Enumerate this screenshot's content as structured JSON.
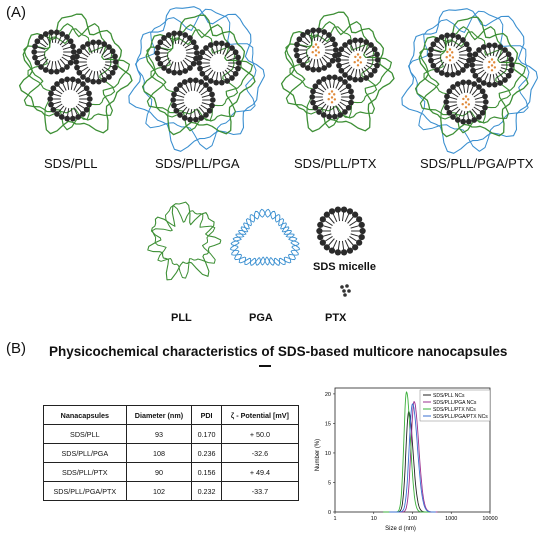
{
  "panel_a": {
    "label": "(A)",
    "capsules": [
      {
        "name": "SDS/PLL"
      },
      {
        "name": "SDS/PLL/PGA"
      },
      {
        "name": "SDS/PLL/PTX"
      },
      {
        "name": "SDS/PLL/PGA/PTX"
      }
    ],
    "components": {
      "pll": "PLL",
      "pga": "PGA",
      "ptx": "PTX",
      "micelle": "SDS micelle"
    },
    "colors": {
      "pll": "#3d8f35",
      "pga": "#3a8fd0",
      "micelle": "#2b2b2b",
      "ptx": "#e08a3a"
    }
  },
  "panel_b": {
    "label": "(B)",
    "title": "Physicochemical characteristics of SDS-based multicore nanocapsules",
    "table": {
      "headers": [
        "Nanacapsules",
        "Diameter (nm)",
        "PDI",
        "ζ - Potential [mV]"
      ],
      "rows": [
        [
          "SDS/PLL",
          "93",
          "0.170",
          "+ 50.0"
        ],
        [
          "SDS/PLL/PGA",
          "108",
          "0.236",
          "-32.6"
        ],
        [
          "SDS/PLL/PTX",
          "90",
          "0.156",
          "+ 49.4"
        ],
        [
          "SDS/PLL/PGA/PTX",
          "102",
          "0.232",
          "-33.7"
        ]
      ]
    }
  },
  "chart_data": {
    "type": "line",
    "xlabel": "Size d (nm)",
    "ylabel": "Number (%)",
    "xscale": "log",
    "xlim": [
      1,
      10000
    ],
    "ylim": [
      0,
      21
    ],
    "xticks": [
      "1",
      "10",
      "100",
      "1000",
      "10000"
    ],
    "yticks": [
      "0",
      "5",
      "10",
      "15",
      "20"
    ],
    "legend_position": "top-right",
    "series": [
      {
        "name": "SDS/PLL NCs",
        "color": "#222222",
        "peak_x": 80,
        "peak_y": 17.0,
        "width": 0.13
      },
      {
        "name": "SDS/PLL/PGA NCs",
        "color": "#9b2f8f",
        "peak_x": 110,
        "peak_y": 18.7,
        "width": 0.14
      },
      {
        "name": "SDS/PLL/PTX NCs",
        "color": "#3ab03a",
        "peak_x": 70,
        "peak_y": 20.3,
        "width": 0.12
      },
      {
        "name": "SDS/PLL/PGA/PTX NCs",
        "color": "#3a6fd0",
        "peak_x": 100,
        "peak_y": 18.3,
        "width": 0.15
      }
    ]
  }
}
